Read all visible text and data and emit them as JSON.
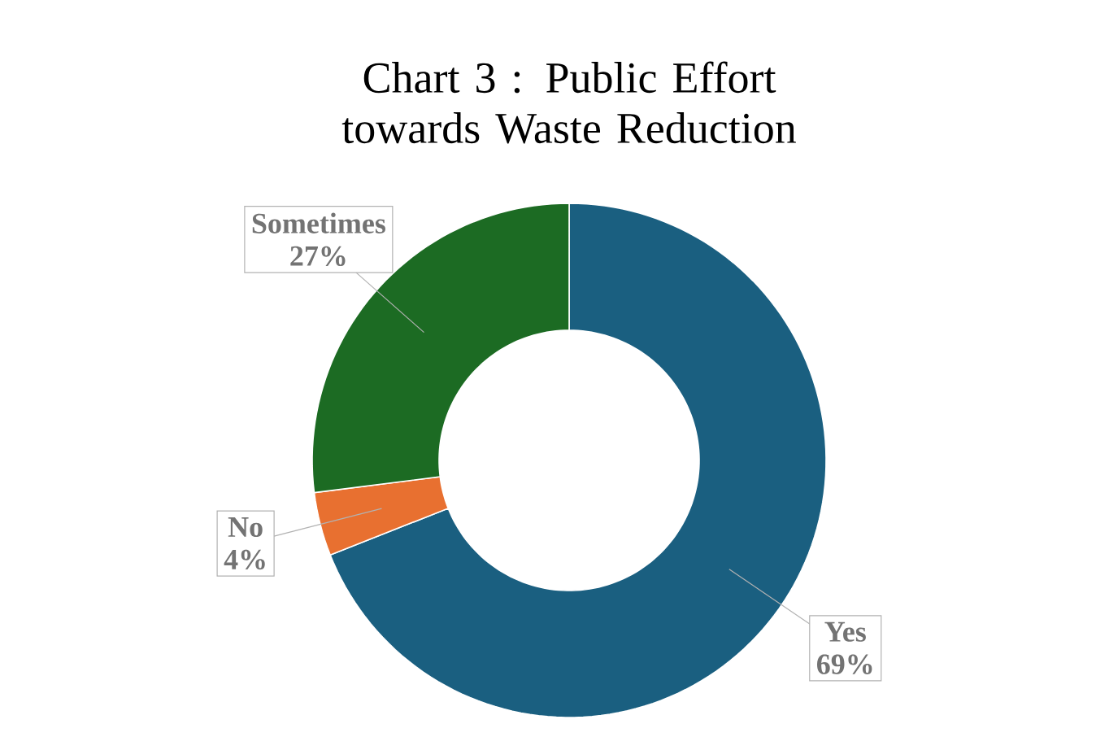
{
  "chart_data": {
    "type": "donut",
    "title": "Chart 3 : Public Effort towards Waste Reduction",
    "categories": [
      "Yes",
      "No",
      "Sometimes"
    ],
    "values": [
      69,
      4,
      27
    ],
    "colors": [
      "#1a5f80",
      "#e87030",
      "#1c6b23"
    ],
    "value_labels": [
      "69%",
      "4%",
      "27%"
    ],
    "legend": false
  }
}
